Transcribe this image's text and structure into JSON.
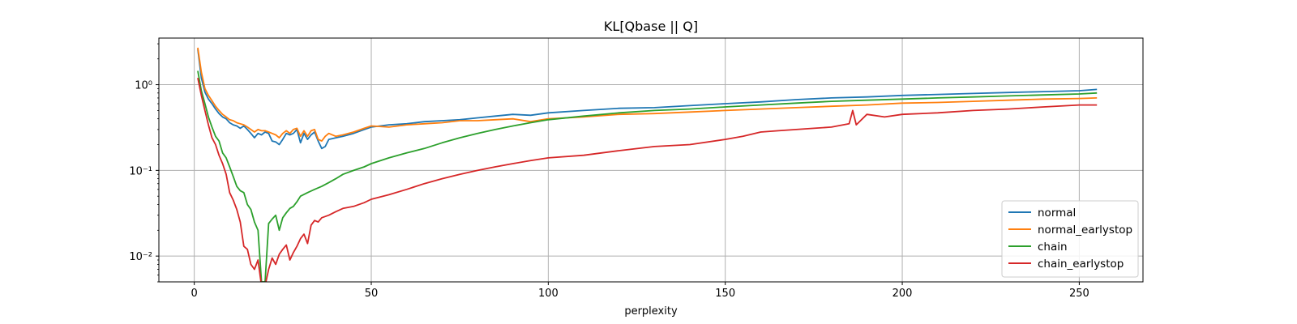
{
  "chart_data": {
    "type": "line",
    "title": "KL[Qbase || Q]",
    "xlabel": "perplexity",
    "ylabel": "",
    "yscale": "log",
    "xlim": [
      -10,
      268
    ],
    "ylim": [
      0.005,
      3.5
    ],
    "xticks": [
      0,
      50,
      100,
      150,
      200,
      250
    ],
    "xtick_labels": [
      "0",
      "50",
      "100",
      "150",
      "200",
      "250"
    ],
    "yticks": [
      0.01,
      0.1,
      1
    ],
    "ytick_labels": [
      "10⁻²",
      "10⁻¹",
      "10⁰"
    ],
    "grid": true,
    "legend_location": "lower right",
    "series": [
      {
        "name": "normal",
        "color": "#1f77b4",
        "points": [
          [
            1,
            2.6
          ],
          [
            2,
            1.2
          ],
          [
            3,
            0.82
          ],
          [
            4,
            0.68
          ],
          [
            5,
            0.6
          ],
          [
            6,
            0.52
          ],
          [
            7,
            0.46
          ],
          [
            8,
            0.42
          ],
          [
            9,
            0.4
          ],
          [
            10,
            0.36
          ],
          [
            11,
            0.34
          ],
          [
            12,
            0.33
          ],
          [
            13,
            0.31
          ],
          [
            14,
            0.33
          ],
          [
            15,
            0.3
          ],
          [
            16,
            0.27
          ],
          [
            17,
            0.24
          ],
          [
            18,
            0.27
          ],
          [
            19,
            0.26
          ],
          [
            20,
            0.28
          ],
          [
            21,
            0.27
          ],
          [
            22,
            0.22
          ],
          [
            23,
            0.215
          ],
          [
            24,
            0.2
          ],
          [
            25,
            0.23
          ],
          [
            26,
            0.27
          ],
          [
            27,
            0.26
          ],
          [
            28,
            0.27
          ],
          [
            29,
            0.3
          ],
          [
            30,
            0.21
          ],
          [
            31,
            0.27
          ],
          [
            32,
            0.23
          ],
          [
            33,
            0.26
          ],
          [
            34,
            0.28
          ],
          [
            35,
            0.22
          ],
          [
            36,
            0.18
          ],
          [
            37,
            0.19
          ],
          [
            38,
            0.23
          ],
          [
            40,
            0.24
          ],
          [
            42,
            0.25
          ],
          [
            45,
            0.27
          ],
          [
            48,
            0.3
          ],
          [
            50,
            0.32
          ],
          [
            55,
            0.34
          ],
          [
            60,
            0.35
          ],
          [
            65,
            0.37
          ],
          [
            70,
            0.38
          ],
          [
            75,
            0.39
          ],
          [
            80,
            0.41
          ],
          [
            85,
            0.43
          ],
          [
            90,
            0.45
          ],
          [
            95,
            0.44
          ],
          [
            100,
            0.47
          ],
          [
            110,
            0.5
          ],
          [
            120,
            0.53
          ],
          [
            130,
            0.54
          ],
          [
            140,
            0.57
          ],
          [
            150,
            0.6
          ],
          [
            160,
            0.63
          ],
          [
            170,
            0.67
          ],
          [
            180,
            0.7
          ],
          [
            190,
            0.72
          ],
          [
            200,
            0.75
          ],
          [
            210,
            0.77
          ],
          [
            220,
            0.79
          ],
          [
            230,
            0.81
          ],
          [
            240,
            0.83
          ],
          [
            250,
            0.85
          ],
          [
            255,
            0.88
          ]
        ]
      },
      {
        "name": "normal_earlystop",
        "color": "#ff7f0e",
        "points": [
          [
            1,
            2.7
          ],
          [
            2,
            1.4
          ],
          [
            3,
            0.9
          ],
          [
            4,
            0.75
          ],
          [
            5,
            0.65
          ],
          [
            6,
            0.56
          ],
          [
            7,
            0.5
          ],
          [
            8,
            0.45
          ],
          [
            9,
            0.42
          ],
          [
            10,
            0.39
          ],
          [
            11,
            0.38
          ],
          [
            12,
            0.36
          ],
          [
            13,
            0.35
          ],
          [
            14,
            0.34
          ],
          [
            15,
            0.32
          ],
          [
            16,
            0.3
          ],
          [
            17,
            0.28
          ],
          [
            18,
            0.3
          ],
          [
            19,
            0.29
          ],
          [
            20,
            0.29
          ],
          [
            21,
            0.28
          ],
          [
            22,
            0.27
          ],
          [
            23,
            0.26
          ],
          [
            24,
            0.24
          ],
          [
            25,
            0.27
          ],
          [
            26,
            0.29
          ],
          [
            27,
            0.27
          ],
          [
            28,
            0.3
          ],
          [
            29,
            0.31
          ],
          [
            30,
            0.25
          ],
          [
            31,
            0.29
          ],
          [
            32,
            0.25
          ],
          [
            33,
            0.29
          ],
          [
            34,
            0.3
          ],
          [
            35,
            0.23
          ],
          [
            36,
            0.22
          ],
          [
            37,
            0.25
          ],
          [
            38,
            0.27
          ],
          [
            40,
            0.25
          ],
          [
            42,
            0.26
          ],
          [
            45,
            0.28
          ],
          [
            48,
            0.31
          ],
          [
            50,
            0.33
          ],
          [
            55,
            0.32
          ],
          [
            60,
            0.34
          ],
          [
            65,
            0.35
          ],
          [
            70,
            0.36
          ],
          [
            75,
            0.38
          ],
          [
            80,
            0.38
          ],
          [
            85,
            0.39
          ],
          [
            90,
            0.4
          ],
          [
            95,
            0.37
          ],
          [
            100,
            0.4
          ],
          [
            110,
            0.42
          ],
          [
            120,
            0.45
          ],
          [
            130,
            0.46
          ],
          [
            140,
            0.48
          ],
          [
            150,
            0.5
          ],
          [
            160,
            0.52
          ],
          [
            170,
            0.54
          ],
          [
            180,
            0.56
          ],
          [
            190,
            0.58
          ],
          [
            200,
            0.61
          ],
          [
            210,
            0.62
          ],
          [
            220,
            0.64
          ],
          [
            230,
            0.66
          ],
          [
            240,
            0.68
          ],
          [
            250,
            0.69
          ],
          [
            255,
            0.7
          ]
        ]
      },
      {
        "name": "chain",
        "color": "#2ca02c",
        "points": [
          [
            1,
            1.45
          ],
          [
            2,
            0.85
          ],
          [
            3,
            0.6
          ],
          [
            4,
            0.42
          ],
          [
            5,
            0.32
          ],
          [
            6,
            0.25
          ],
          [
            7,
            0.22
          ],
          [
            8,
            0.16
          ],
          [
            9,
            0.14
          ],
          [
            10,
            0.11
          ],
          [
            11,
            0.085
          ],
          [
            12,
            0.065
          ],
          [
            13,
            0.058
          ],
          [
            14,
            0.055
          ],
          [
            15,
            0.04
          ],
          [
            16,
            0.035
          ],
          [
            17,
            0.025
          ],
          [
            18,
            0.02
          ],
          [
            19,
            0.005
          ],
          [
            20,
            0.005
          ],
          [
            21,
            0.024
          ],
          [
            22,
            0.027
          ],
          [
            23,
            0.03
          ],
          [
            24,
            0.02
          ],
          [
            25,
            0.028
          ],
          [
            26,
            0.032
          ],
          [
            27,
            0.036
          ],
          [
            28,
            0.038
          ],
          [
            29,
            0.043
          ],
          [
            30,
            0.05
          ],
          [
            32,
            0.055
          ],
          [
            34,
            0.06
          ],
          [
            36,
            0.065
          ],
          [
            38,
            0.072
          ],
          [
            40,
            0.08
          ],
          [
            42,
            0.09
          ],
          [
            45,
            0.1
          ],
          [
            48,
            0.11
          ],
          [
            50,
            0.12
          ],
          [
            55,
            0.14
          ],
          [
            60,
            0.16
          ],
          [
            65,
            0.18
          ],
          [
            70,
            0.21
          ],
          [
            75,
            0.24
          ],
          [
            80,
            0.27
          ],
          [
            85,
            0.3
          ],
          [
            90,
            0.33
          ],
          [
            95,
            0.36
          ],
          [
            100,
            0.39
          ],
          [
            110,
            0.43
          ],
          [
            120,
            0.47
          ],
          [
            130,
            0.5
          ],
          [
            140,
            0.52
          ],
          [
            150,
            0.55
          ],
          [
            160,
            0.58
          ],
          [
            170,
            0.61
          ],
          [
            180,
            0.64
          ],
          [
            190,
            0.66
          ],
          [
            200,
            0.68
          ],
          [
            210,
            0.7
          ],
          [
            220,
            0.72
          ],
          [
            230,
            0.74
          ],
          [
            240,
            0.76
          ],
          [
            250,
            0.78
          ],
          [
            255,
            0.8
          ]
        ]
      },
      {
        "name": "chain_earlystop",
        "color": "#d62728",
        "points": [
          [
            1,
            1.2
          ],
          [
            2,
            0.75
          ],
          [
            3,
            0.5
          ],
          [
            4,
            0.34
          ],
          [
            5,
            0.24
          ],
          [
            6,
            0.2
          ],
          [
            7,
            0.15
          ],
          [
            8,
            0.12
          ],
          [
            9,
            0.09
          ],
          [
            10,
            0.055
          ],
          [
            11,
            0.045
          ],
          [
            12,
            0.035
          ],
          [
            13,
            0.025
          ],
          [
            14,
            0.013
          ],
          [
            15,
            0.012
          ],
          [
            16,
            0.008
          ],
          [
            17,
            0.007
          ],
          [
            18,
            0.009
          ],
          [
            19,
            0.0045
          ],
          [
            20,
            0.0045
          ],
          [
            21,
            0.007
          ],
          [
            22,
            0.0095
          ],
          [
            23,
            0.008
          ],
          [
            24,
            0.0105
          ],
          [
            25,
            0.012
          ],
          [
            26,
            0.0135
          ],
          [
            27,
            0.009
          ],
          [
            28,
            0.011
          ],
          [
            29,
            0.013
          ],
          [
            30,
            0.016
          ],
          [
            31,
            0.018
          ],
          [
            32,
            0.014
          ],
          [
            33,
            0.023
          ],
          [
            34,
            0.026
          ],
          [
            35,
            0.025
          ],
          [
            36,
            0.028
          ],
          [
            38,
            0.03
          ],
          [
            40,
            0.033
          ],
          [
            42,
            0.036
          ],
          [
            45,
            0.038
          ],
          [
            48,
            0.042
          ],
          [
            50,
            0.046
          ],
          [
            55,
            0.052
          ],
          [
            60,
            0.06
          ],
          [
            65,
            0.07
          ],
          [
            70,
            0.08
          ],
          [
            75,
            0.09
          ],
          [
            80,
            0.1
          ],
          [
            85,
            0.11
          ],
          [
            90,
            0.12
          ],
          [
            95,
            0.13
          ],
          [
            100,
            0.14
          ],
          [
            110,
            0.15
          ],
          [
            120,
            0.17
          ],
          [
            130,
            0.19
          ],
          [
            140,
            0.2
          ],
          [
            150,
            0.23
          ],
          [
            155,
            0.25
          ],
          [
            160,
            0.28
          ],
          [
            165,
            0.29
          ],
          [
            170,
            0.3
          ],
          [
            175,
            0.31
          ],
          [
            180,
            0.32
          ],
          [
            185,
            0.35
          ],
          [
            186,
            0.5
          ],
          [
            187,
            0.34
          ],
          [
            190,
            0.45
          ],
          [
            195,
            0.42
          ],
          [
            200,
            0.45
          ],
          [
            210,
            0.47
          ],
          [
            220,
            0.5
          ],
          [
            230,
            0.52
          ],
          [
            240,
            0.55
          ],
          [
            250,
            0.58
          ],
          [
            255,
            0.58
          ]
        ]
      }
    ]
  }
}
